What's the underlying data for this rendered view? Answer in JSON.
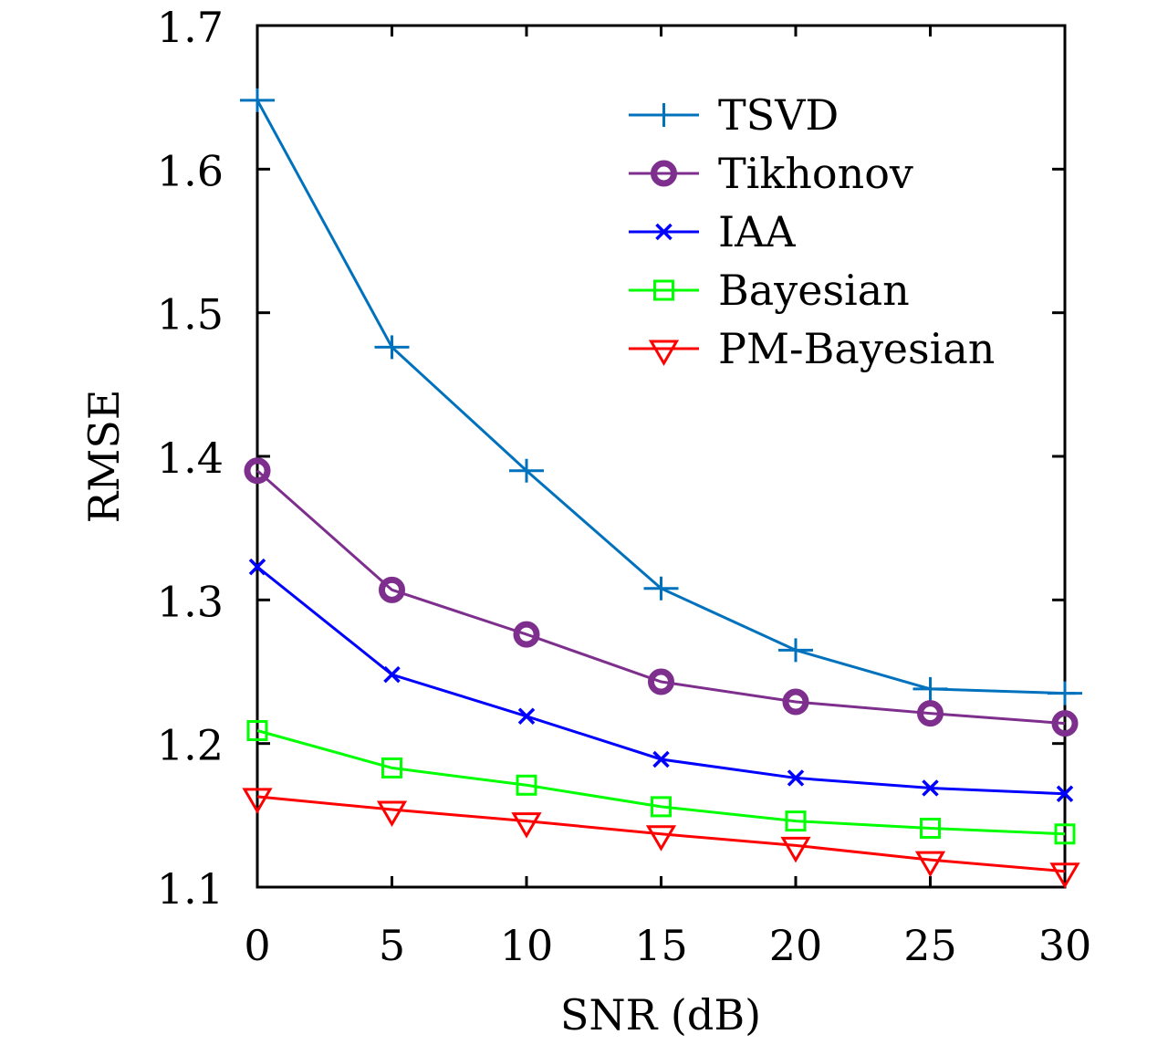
{
  "chart_data": {
    "type": "line",
    "title": "",
    "xlabel": "SNR (dB)",
    "ylabel": "RMSE",
    "xlim": [
      0,
      30
    ],
    "ylim": [
      1.1,
      1.7
    ],
    "x": [
      0,
      5,
      10,
      15,
      20,
      25,
      30
    ],
    "xticks": [
      "0",
      "5",
      "10",
      "15",
      "20",
      "25",
      "30"
    ],
    "yticks": [
      "1.1",
      "1.2",
      "1.3",
      "1.4",
      "1.5",
      "1.6",
      "1.7"
    ],
    "grid": false,
    "legend_position": "top-right",
    "series": [
      {
        "name": "TSVD",
        "color": "#0072bd",
        "marker": "plus",
        "values": [
          1.648,
          1.476,
          1.39,
          1.308,
          1.265,
          1.238,
          1.235
        ]
      },
      {
        "name": "Tikhonov",
        "color": "#7e2f8e",
        "marker": "circle",
        "values": [
          1.39,
          1.307,
          1.276,
          1.243,
          1.229,
          1.221,
          1.214
        ]
      },
      {
        "name": "IAA",
        "color": "#0000ff",
        "marker": "x",
        "values": [
          1.323,
          1.248,
          1.219,
          1.189,
          1.176,
          1.169,
          1.165
        ]
      },
      {
        "name": "Bayesian",
        "color": "#00ff00",
        "marker": "square",
        "values": [
          1.209,
          1.183,
          1.171,
          1.156,
          1.146,
          1.141,
          1.137
        ]
      },
      {
        "name": "PM-Bayesian",
        "color": "#ff0000",
        "marker": "triangle-down",
        "values": [
          1.163,
          1.154,
          1.146,
          1.137,
          1.129,
          1.119,
          1.111
        ]
      }
    ]
  }
}
